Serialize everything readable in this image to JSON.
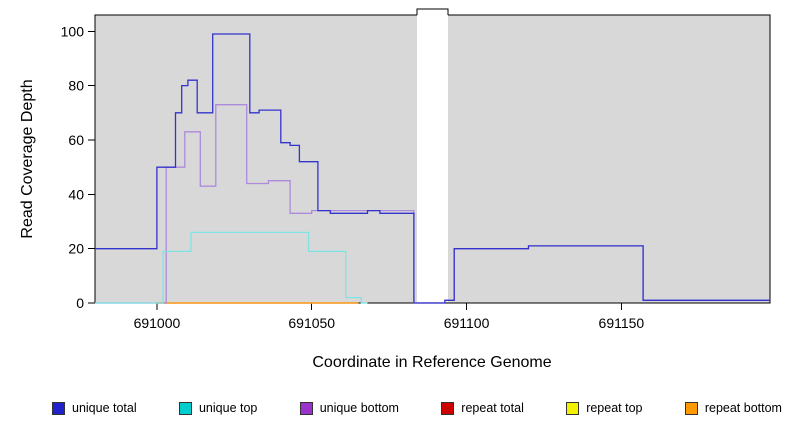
{
  "chart_data": {
    "type": "line",
    "step": true,
    "title": "",
    "xlabel": "Coordinate in Reference Genome",
    "ylabel": "Read Coverage Depth",
    "xlim": [
      690980,
      691198
    ],
    "ylim": [
      0,
      106
    ],
    "x_ticks": [
      691000,
      691050,
      691100,
      691150
    ],
    "y_ticks": [
      0,
      20,
      40,
      60,
      80,
      100
    ],
    "plot_bg": "#D8D8D8",
    "grid": false,
    "legend_position": "bottom",
    "masked_region": {
      "x_start": 691084,
      "x_end": 691094,
      "color": "#FFFFFF"
    },
    "series": [
      {
        "id": "repeat-total",
        "name": "repeat total",
        "color": "#CC0000",
        "steps": [
          [
            691000,
            0
          ]
        ],
        "x_end": 691065
      },
      {
        "id": "repeat-top",
        "name": "repeat top",
        "color": "#F5F500",
        "steps": [
          [
            691000,
            0
          ]
        ],
        "x_end": 691065
      },
      {
        "id": "repeat-bottom",
        "name": "repeat bottom",
        "color": "#FF9D26",
        "steps": [
          [
            691000,
            0
          ]
        ],
        "x_end": 691065
      },
      {
        "id": "unique-bottom",
        "name": "unique bottom",
        "color": "#AC8BDC",
        "steps": [
          [
            690980,
            0
          ],
          [
            691003,
            50
          ],
          [
            691009,
            63
          ],
          [
            691014,
            43
          ],
          [
            691019,
            73
          ],
          [
            691029,
            44
          ],
          [
            691036,
            45
          ],
          [
            691043,
            33
          ],
          [
            691050,
            34
          ],
          [
            691083,
            0
          ],
          [
            691093,
            1
          ],
          [
            691096,
            20
          ],
          [
            691120,
            21
          ],
          [
            691157,
            1
          ]
        ],
        "x_end": 691198
      },
      {
        "id": "unique-top",
        "name": "unique top",
        "color": "#7FE3E3",
        "steps": [
          [
            690980,
            0
          ],
          [
            691002,
            19
          ],
          [
            691011,
            26
          ],
          [
            691049,
            19
          ],
          [
            691061,
            2
          ],
          [
            691066,
            0
          ]
        ],
        "x_end": 691068
      },
      {
        "id": "unique-total",
        "name": "unique total",
        "color": "#3333CC",
        "steps": [
          [
            690980,
            20
          ],
          [
            691000,
            50
          ],
          [
            691006,
            70
          ],
          [
            691008,
            80
          ],
          [
            691010,
            82
          ],
          [
            691013,
            70
          ],
          [
            691018,
            99
          ],
          [
            691030,
            70
          ],
          [
            691033,
            71
          ],
          [
            691040,
            59
          ],
          [
            691043,
            58
          ],
          [
            691046,
            52
          ],
          [
            691052,
            34
          ],
          [
            691056,
            33
          ],
          [
            691068,
            34
          ],
          [
            691072,
            33
          ],
          [
            691083,
            0
          ],
          [
            691093,
            1
          ],
          [
            691096,
            20
          ],
          [
            691120,
            21
          ],
          [
            691157,
            1
          ]
        ],
        "x_end": 691198
      }
    ]
  },
  "legend": {
    "items": [
      {
        "id": "unique-total",
        "label": "unique total",
        "color": "#2222CC"
      },
      {
        "id": "unique-top",
        "label": "unique top",
        "color": "#00CDCD"
      },
      {
        "id": "unique-bottom",
        "label": "unique bottom",
        "color": "#9933CC"
      },
      {
        "id": "repeat-total",
        "label": "repeat total",
        "color": "#CC0000"
      },
      {
        "id": "repeat-top",
        "label": "repeat top",
        "color": "#F2F200"
      },
      {
        "id": "repeat-bottom",
        "label": "repeat bottom",
        "color": "#FF9900"
      }
    ]
  }
}
